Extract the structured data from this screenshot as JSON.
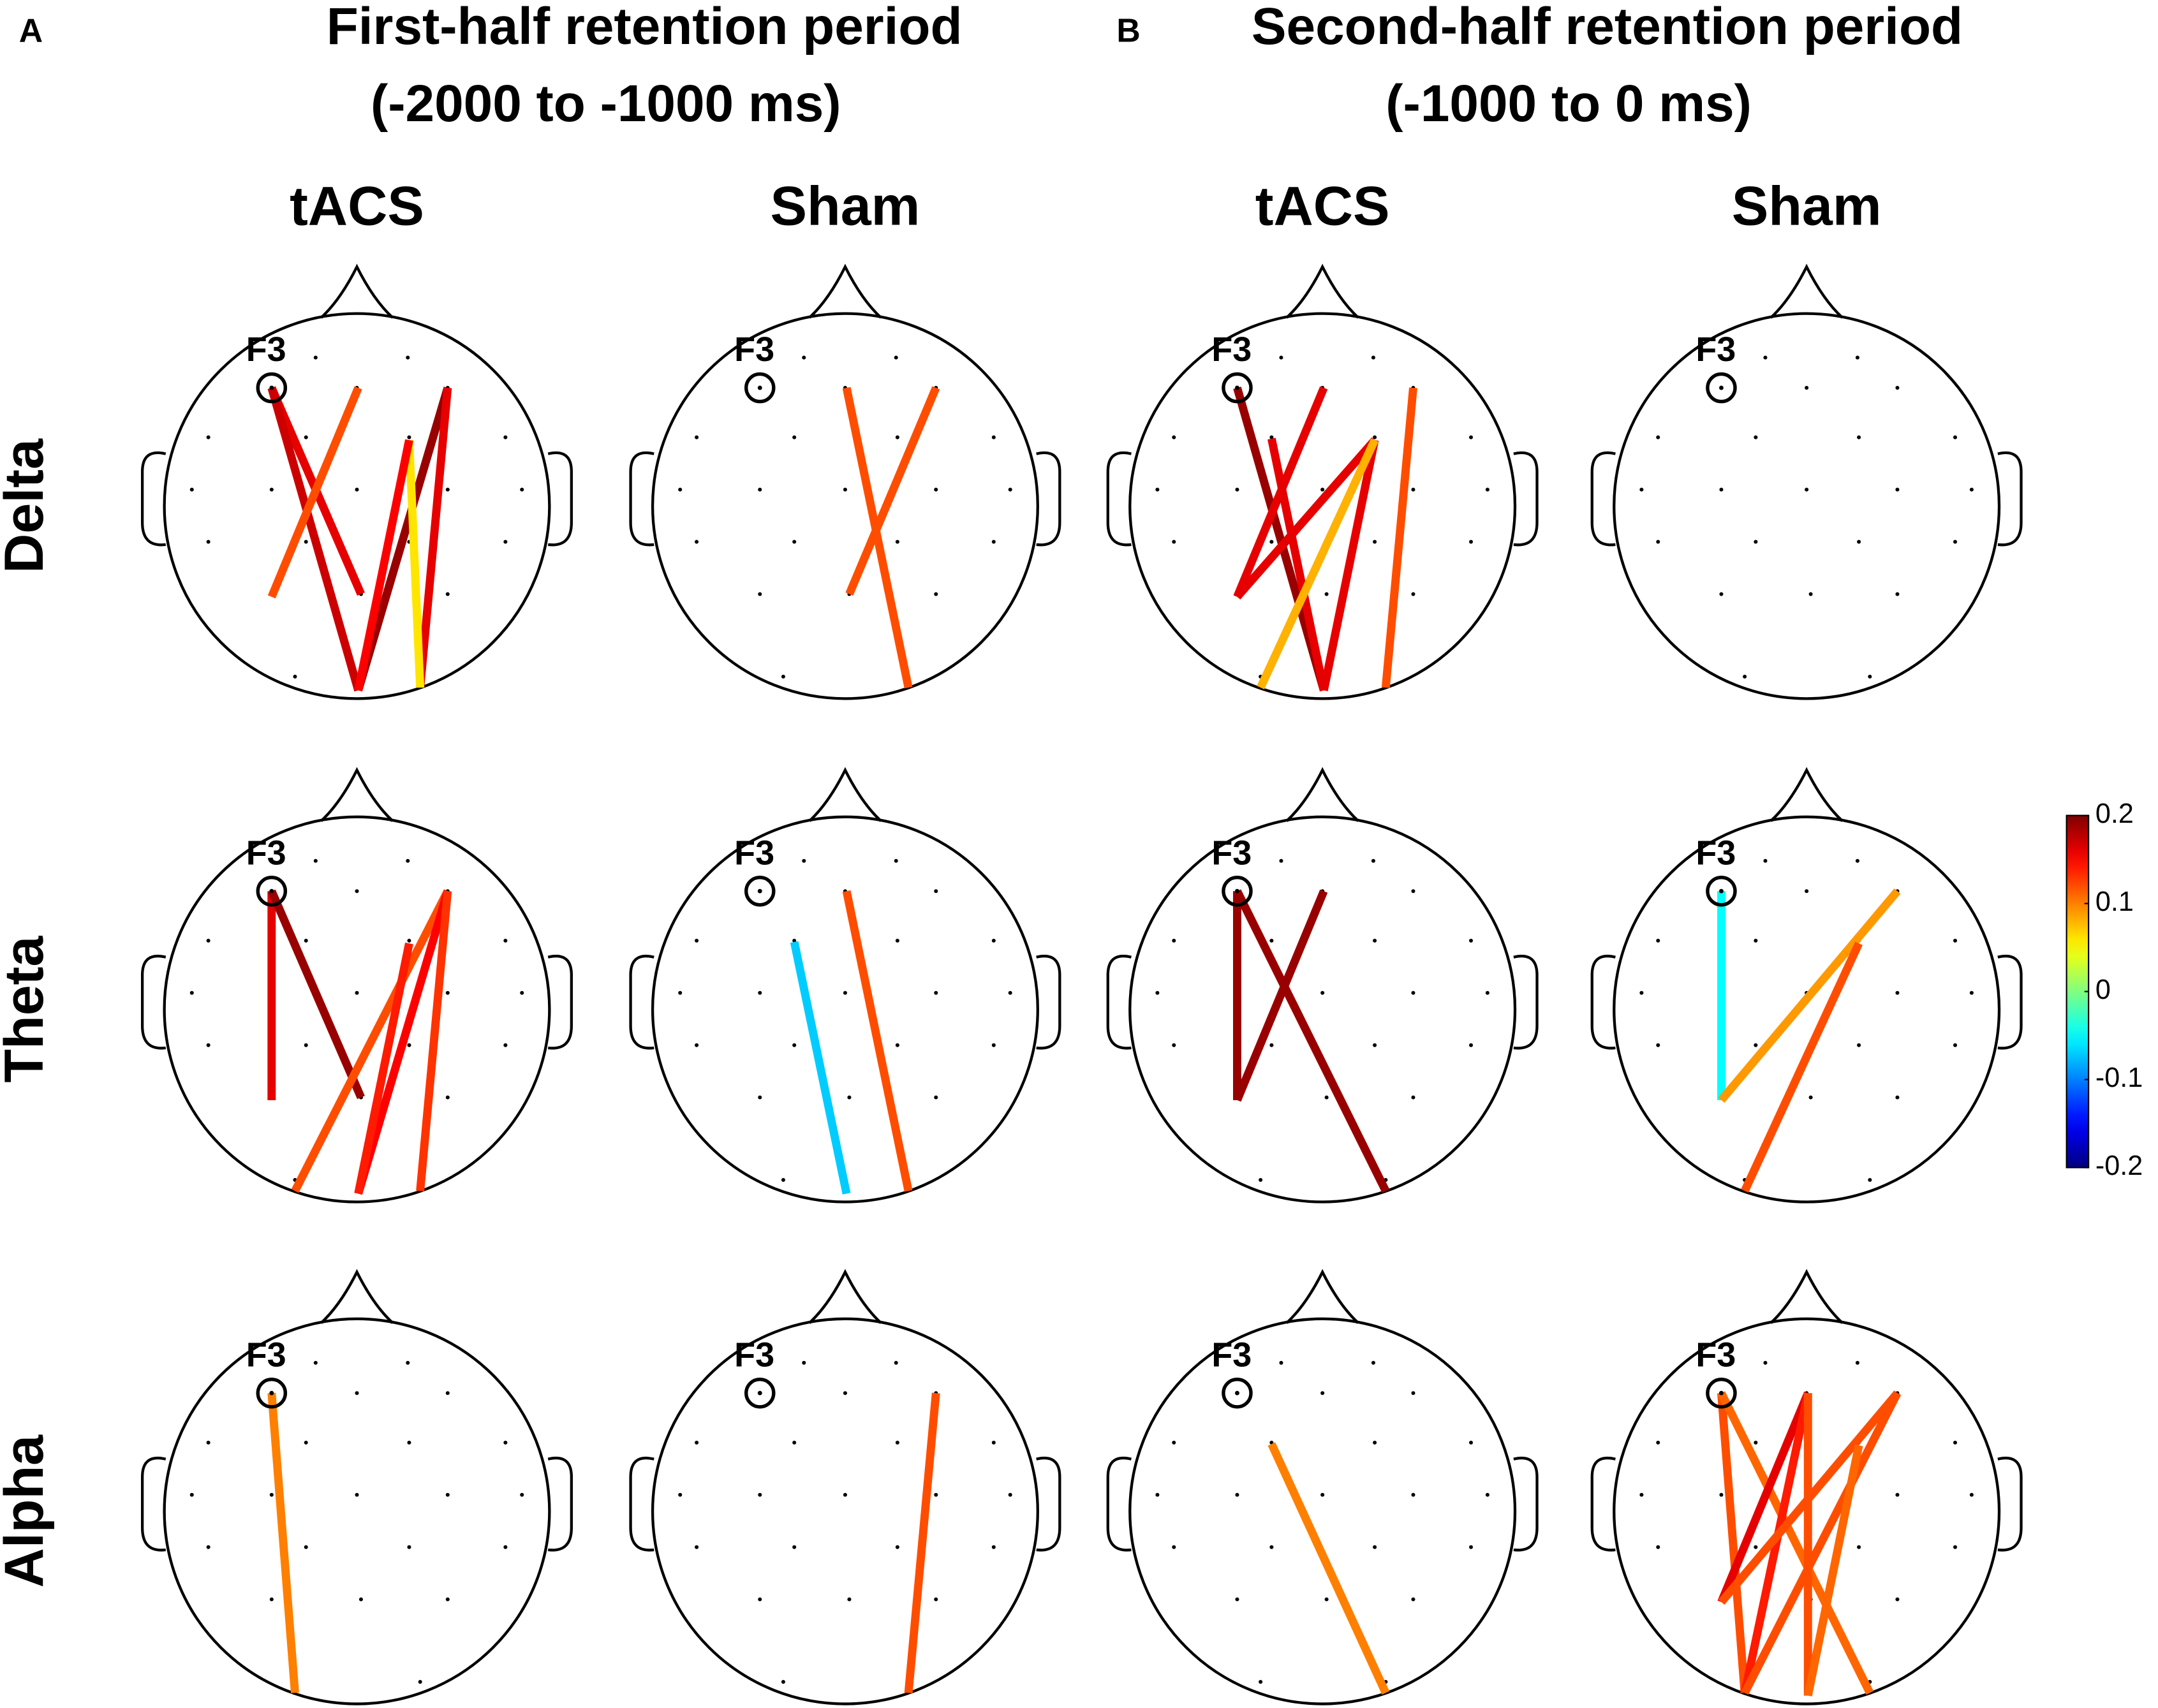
{
  "chart_data": {
    "type": "connectivity",
    "panel_labels": [
      "A",
      "B"
    ],
    "periods": [
      {
        "title": "First-half retention period",
        "range": "(-2000 to -1000 ms)"
      },
      {
        "title": "Second-half retention period",
        "range": "(-1000 to 0 ms)"
      }
    ],
    "conditions": [
      "tACS",
      "Sham",
      "tACS",
      "Sham"
    ],
    "bands": [
      "Delta",
      "Theta",
      "Alpha"
    ],
    "electrode_label": "F3",
    "colorbar": {
      "lim": [
        -0.2,
        0.2
      ],
      "ticks": [
        0.2,
        0.1,
        0,
        -0.1,
        -0.2
      ]
    },
    "plots": [
      {
        "values": [
          0.16,
          0.17,
          0.12,
          0.19,
          0.16,
          0.06,
          0.15
        ]
      },
      {
        "values": [
          0.12,
          0.12
        ]
      },
      {
        "values": [
          0.19,
          0.16,
          0.16,
          0.16,
          0.16,
          0.08,
          0.12
        ]
      },
      {
        "values": []
      },
      {
        "values": [
          0.16,
          0.19,
          0.12,
          0.15,
          0.13,
          0.14
        ]
      },
      {
        "values": [
          -0.07,
          0.12
        ]
      },
      {
        "values": [
          0.19,
          0.19,
          0.19
        ]
      },
      {
        "values": [
          -0.05,
          0.09,
          0.12
        ]
      },
      {
        "values": [
          0.1
        ]
      },
      {
        "values": [
          0.12
        ]
      },
      {
        "values": [
          0.1
        ]
      },
      {
        "values": [
          0.12,
          0.11,
          0.16,
          0.14,
          0.12,
          0.12,
          0.12,
          0.11
        ]
      }
    ]
  }
}
